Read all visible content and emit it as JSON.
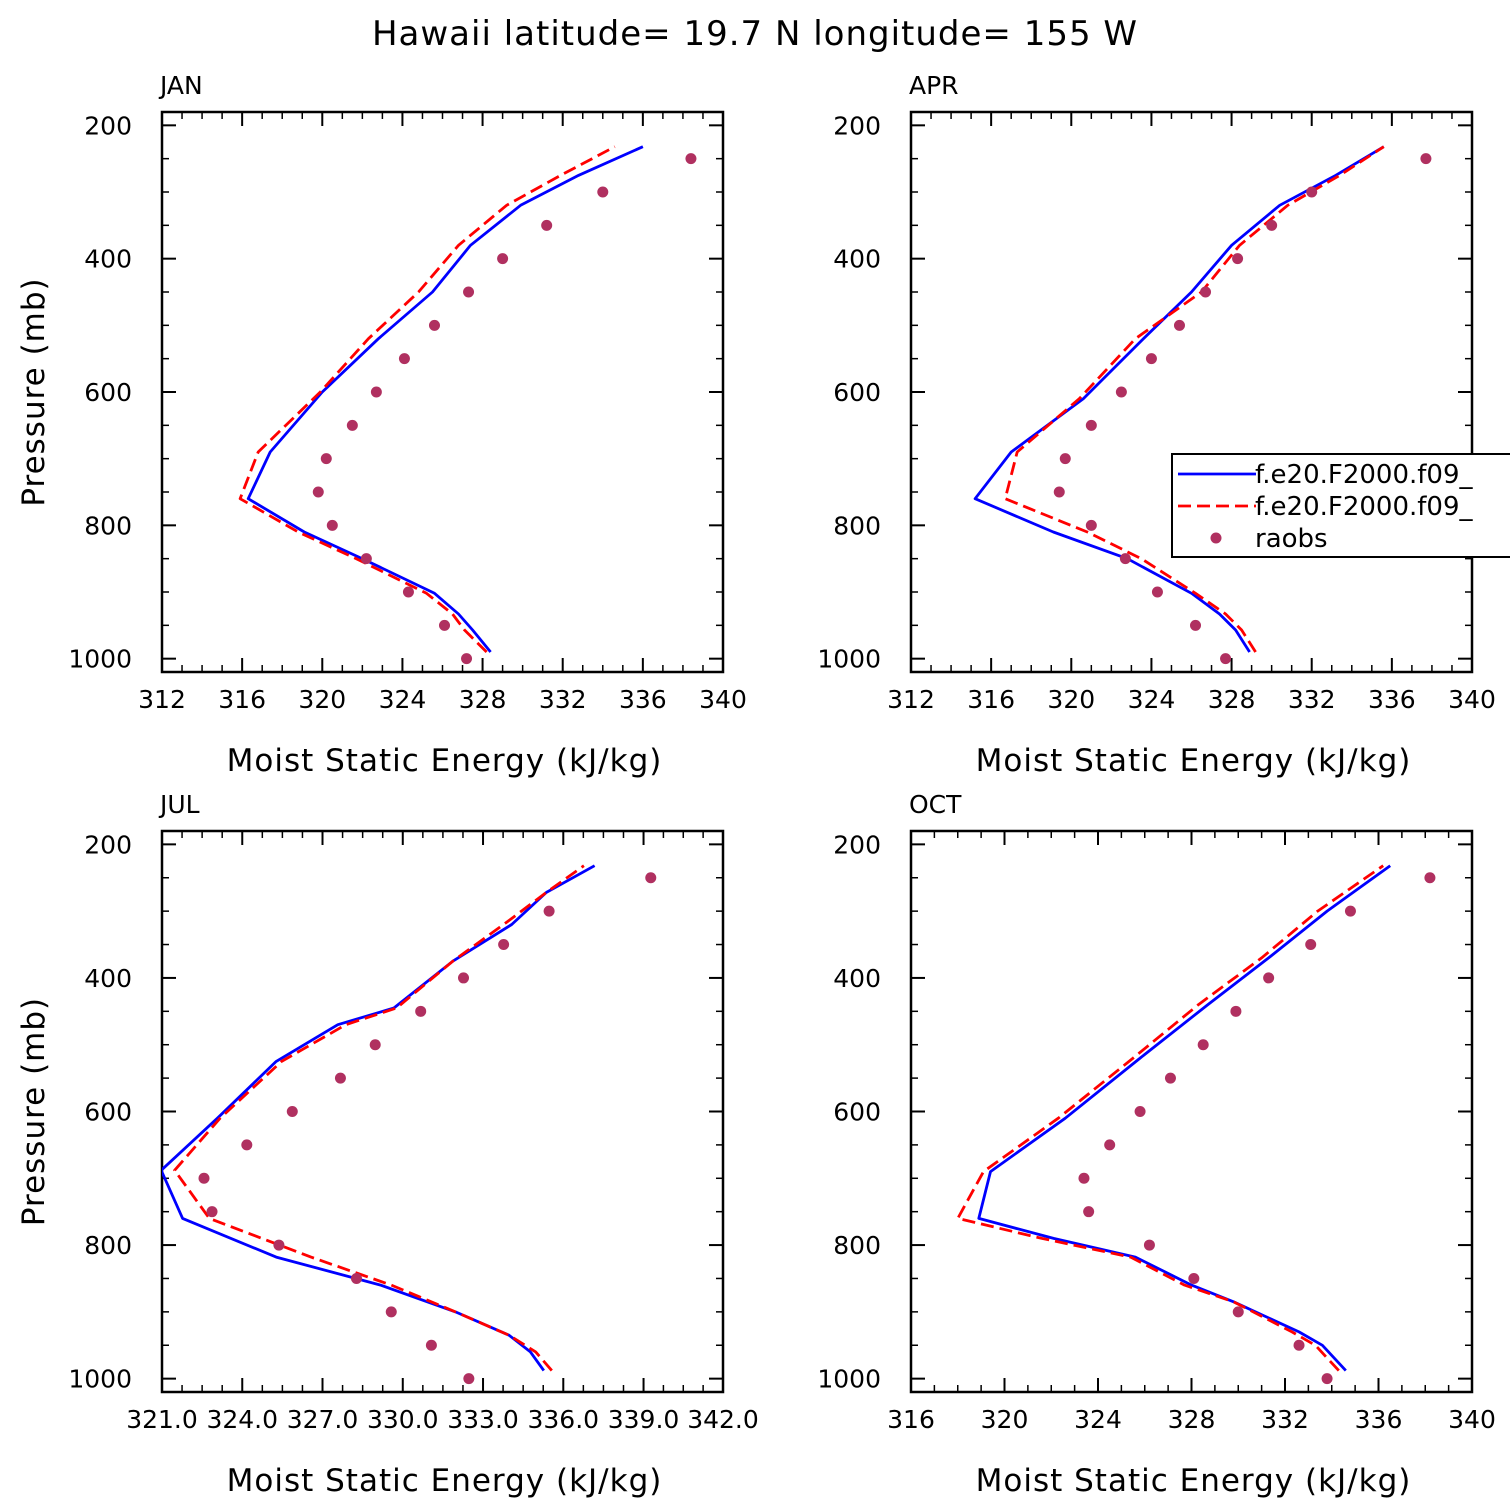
{
  "figure": {
    "title": "Hawaii  latitude= 19.7 N longitude= 155 W"
  },
  "legend": {
    "entries": [
      {
        "label": "f.e20.F2000.f09_",
        "style": "solid",
        "color": "#0000ff"
      },
      {
        "label": "f.e20.F2000.f09_",
        "style": "dashed",
        "color": "#ff0000"
      },
      {
        "label": "raobs",
        "style": "marker",
        "color": "#b03060"
      }
    ]
  },
  "chart_data": [
    {
      "type": "line",
      "panel": "JAN",
      "title": "JAN",
      "xlabel": "Moist Static Energy (kJ/kg)",
      "ylabel": "Pressure (mb)",
      "xlim": [
        312,
        340
      ],
      "ylim": [
        1000,
        200
      ],
      "xticks": [
        312,
        316,
        320,
        324,
        328,
        332,
        336,
        340
      ],
      "xtick_labels": [
        "312",
        "316",
        "320",
        "324",
        "328",
        "332",
        "336",
        "340"
      ],
      "yticks": [
        200,
        400,
        600,
        800,
        1000
      ],
      "series": [
        {
          "name": "f.e20.F2000.f09_",
          "style": "solid",
          "color": "#0000ff",
          "x": [
            328.4,
            327.5,
            326.8,
            325.6,
            322.0,
            319.1,
            316.3,
            317.4,
            320.0,
            322.8,
            325.5,
            327.4,
            329.9,
            332.8,
            336.0
          ],
          "y": [
            990,
            957,
            933,
            902,
            850,
            810,
            760,
            690,
            600,
            520,
            450,
            380,
            320,
            275,
            232
          ]
        },
        {
          "name": "f.e20.F2000.f09_",
          "style": "dashed",
          "color": "#ff0000",
          "x": [
            328.2,
            327.1,
            326.5,
            325.2,
            321.7,
            318.8,
            315.9,
            316.8,
            319.9,
            322.3,
            324.8,
            326.8,
            329.2,
            331.9,
            334.6
          ],
          "y": [
            990,
            957,
            933,
            902,
            850,
            810,
            760,
            690,
            600,
            520,
            450,
            380,
            320,
            275,
            232
          ]
        },
        {
          "name": "raobs",
          "style": "marker",
          "color": "#b03060",
          "x": [
            327.2,
            326.1,
            324.3,
            322.2,
            320.5,
            319.8,
            320.2,
            321.5,
            322.7,
            324.1,
            325.6,
            327.3,
            329.0,
            331.2,
            334.0,
            338.4
          ],
          "y": [
            1000,
            950,
            900,
            850,
            800,
            750,
            700,
            650,
            600,
            550,
            500,
            450,
            400,
            350,
            300,
            250
          ]
        }
      ]
    },
    {
      "type": "line",
      "panel": "APR",
      "title": "APR",
      "xlabel": "Moist Static Energy (kJ/kg)",
      "ylabel": "",
      "xlim": [
        312,
        340
      ],
      "ylim": [
        1000,
        200
      ],
      "xticks": [
        312,
        316,
        320,
        324,
        328,
        332,
        336,
        340
      ],
      "xtick_labels": [
        "312",
        "316",
        "320",
        "324",
        "328",
        "332",
        "336",
        "340"
      ],
      "yticks": [
        200,
        400,
        600,
        800,
        1000
      ],
      "series": [
        {
          "name": "f.e20.F2000.f09_",
          "style": "solid",
          "color": "#0000ff",
          "x": [
            328.9,
            328.2,
            327.4,
            326.0,
            322.8,
            319.1,
            315.2,
            317.0,
            320.6,
            323.6,
            326.0,
            328.0,
            330.4,
            333.2,
            335.6
          ],
          "y": [
            990,
            957,
            933,
            902,
            850,
            810,
            760,
            690,
            610,
            520,
            450,
            380,
            320,
            275,
            232
          ]
        },
        {
          "name": "f.e20.F2000.f09_",
          "style": "dashed",
          "color": "#ff0000",
          "x": [
            329.2,
            328.5,
            327.7,
            326.2,
            323.5,
            320.8,
            316.7,
            317.3,
            320.4,
            323.2,
            326.5,
            328.4,
            330.8,
            333.4,
            335.6
          ],
          "y": [
            990,
            957,
            933,
            902,
            850,
            810,
            760,
            690,
            610,
            520,
            450,
            380,
            320,
            275,
            232
          ]
        },
        {
          "name": "raobs",
          "style": "marker",
          "color": "#b03060",
          "x": [
            327.7,
            326.2,
            324.3,
            322.7,
            321.0,
            319.4,
            319.7,
            321.0,
            322.5,
            324.0,
            325.4,
            326.7,
            328.3,
            330.0,
            332.0,
            337.7
          ],
          "y": [
            1000,
            950,
            900,
            850,
            800,
            750,
            700,
            650,
            600,
            550,
            500,
            450,
            400,
            350,
            300,
            250
          ]
        }
      ]
    },
    {
      "type": "line",
      "panel": "JUL",
      "title": "JUL",
      "xlabel": "Moist Static Energy (kJ/kg)",
      "ylabel": "Pressure (mb)",
      "xlim": [
        321.03,
        342.0
      ],
      "ylim": [
        1000,
        200
      ],
      "xticks": [
        321.03,
        324.03,
        327.03,
        330.03,
        333.03,
        336.03,
        339.03,
        342.0
      ],
      "xtick_labels": [
        "321.0",
        "324.0",
        "327.0",
        "330.0",
        "333.0",
        "336.0",
        "339.0",
        "342.0"
      ],
      "yticks": [
        200,
        400,
        600,
        800,
        1000
      ],
      "series": [
        {
          "name": "f.e20.F2000.f09_",
          "style": "solid",
          "color": "#0000ff",
          "x": [
            335.3,
            334.8,
            334.0,
            332.0,
            329.2,
            325.3,
            321.8,
            321.0,
            323.1,
            325.3,
            327.6,
            329.7,
            331.9,
            334.1,
            335.4,
            337.2
          ],
          "y": [
            988,
            960,
            935,
            900,
            860,
            818,
            760,
            688,
            610,
            525,
            470,
            445,
            375,
            320,
            272,
            232
          ]
        },
        {
          "name": "f.e20.F2000.f09_",
          "style": "dashed",
          "color": "#ff0000",
          "x": [
            335.6,
            335.0,
            334.0,
            332.0,
            329.6,
            326.6,
            322.8,
            321.5,
            323.2,
            325.5,
            327.9,
            329.8,
            331.9,
            333.8,
            335.4,
            336.8
          ],
          "y": [
            988,
            960,
            935,
            900,
            860,
            818,
            760,
            688,
            610,
            525,
            470,
            445,
            375,
            320,
            272,
            232
          ]
        },
        {
          "name": "raobs",
          "style": "marker",
          "color": "#b03060",
          "x": [
            332.5,
            331.1,
            329.6,
            328.3,
            325.4,
            322.9,
            322.6,
            324.2,
            325.9,
            327.7,
            329.0,
            330.7,
            332.3,
            333.8,
            335.5,
            339.3
          ],
          "y": [
            1000,
            950,
            900,
            850,
            800,
            750,
            700,
            650,
            600,
            550,
            500,
            450,
            400,
            350,
            300,
            250
          ]
        }
      ]
    },
    {
      "type": "line",
      "panel": "OCT",
      "title": "OCT",
      "xlabel": "Moist Static Energy (kJ/kg)",
      "ylabel": "",
      "xlim": [
        316,
        340
      ],
      "ylim": [
        1000,
        200
      ],
      "xticks": [
        316,
        320,
        324,
        328,
        332,
        336,
        340
      ],
      "xtick_labels": [
        "316",
        "320",
        "324",
        "328",
        "332",
        "336",
        "340"
      ],
      "yticks": [
        200,
        400,
        600,
        800,
        1000
      ],
      "series": [
        {
          "name": "f.e20.F2000.f09_",
          "style": "solid",
          "color": "#0000ff",
          "x": [
            334.6,
            333.6,
            332.6,
            329.8,
            328.0,
            325.6,
            322.1,
            318.9,
            319.4,
            322.6,
            325.8,
            328.7,
            331.3,
            333.8,
            336.5
          ],
          "y": [
            988,
            950,
            930,
            885,
            860,
            818,
            790,
            760,
            690,
            610,
            520,
            440,
            370,
            300,
            232
          ]
        },
        {
          "name": "f.e20.F2000.f09_",
          "style": "dashed",
          "color": "#ff0000",
          "x": [
            334.3,
            333.3,
            332.3,
            329.8,
            327.7,
            325.4,
            321.6,
            318.0,
            319.1,
            322.3,
            325.5,
            328.3,
            331.0,
            333.4,
            336.2
          ],
          "y": [
            988,
            950,
            930,
            885,
            860,
            818,
            790,
            760,
            690,
            610,
            520,
            440,
            370,
            300,
            232
          ]
        },
        {
          "name": "raobs",
          "style": "marker",
          "color": "#b03060",
          "x": [
            333.8,
            332.6,
            330.0,
            328.1,
            326.2,
            323.6,
            323.4,
            324.5,
            325.8,
            327.1,
            328.5,
            329.9,
            331.3,
            333.1,
            334.8,
            338.2
          ],
          "y": [
            1000,
            950,
            900,
            850,
            800,
            750,
            700,
            650,
            600,
            550,
            500,
            450,
            400,
            350,
            300,
            250
          ]
        }
      ]
    }
  ]
}
